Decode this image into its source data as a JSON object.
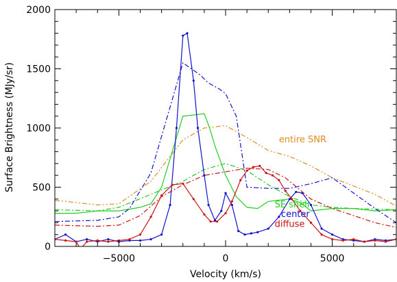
{
  "chart_data": {
    "type": "line",
    "title": "",
    "xlabel": "Velocity (km/s)",
    "ylabel": "Surface Brightness (MJy/sr)",
    "xlim": [
      -8000,
      8000
    ],
    "ylim": [
      0,
      2000
    ],
    "xticks": [
      -5000,
      0,
      5000
    ],
    "xtick_labels": [
      "−5000",
      "0",
      "5000"
    ],
    "yticks": [
      0,
      500,
      1000,
      1500,
      2000
    ],
    "ytick_labels": [
      "0",
      "500",
      "1000",
      "1500",
      "2000"
    ],
    "grid": false,
    "legend_location": "right-middle, inline labels",
    "series": [
      {
        "name": "entire SNR",
        "color": "#e08a1e",
        "dash": "dash-dot-dot",
        "x": [
          -8000,
          -6000,
          -5000,
          -3500,
          -2000,
          -1000,
          -500,
          0,
          1000,
          2000,
          3000,
          4000,
          5000,
          6000,
          7000,
          8000
        ],
        "y": [
          390,
          350,
          360,
          550,
          900,
          1000,
          1010,
          1020,
          920,
          810,
          760,
          680,
          580,
          510,
          440,
          340
        ]
      },
      {
        "name": "SE shell",
        "color": "#22cc22",
        "dash": "solid",
        "x": [
          -8000,
          -7000,
          -6000,
          -5000,
          -4000,
          -3500,
          -3000,
          -2500,
          -2000,
          -1500,
          -1000,
          -750,
          -500,
          0,
          500,
          1000,
          1500,
          2000,
          2500,
          3000,
          3500,
          4000,
          5000,
          6000,
          7000,
          8000
        ],
        "y": [
          280,
          280,
          300,
          300,
          330,
          360,
          500,
          800,
          1100,
          1110,
          1120,
          1000,
          850,
          600,
          420,
          330,
          320,
          380,
          390,
          400,
          370,
          300,
          320,
          320,
          300,
          310
        ]
      },
      {
        "name": "SE shell (dash-dot)",
        "color": "#22cc22",
        "dash": "dash-dot",
        "x": [
          -8000,
          -6000,
          -5000,
          -3500,
          -2000,
          -1000,
          0,
          1000,
          2000,
          3000,
          4000,
          5000,
          6000,
          8000
        ],
        "y": [
          310,
          300,
          330,
          440,
          550,
          650,
          700,
          640,
          520,
          420,
          350,
          330,
          320,
          310
        ]
      },
      {
        "name": "center",
        "color": "#1111cc",
        "dash": "solid",
        "x": [
          -8000,
          -7500,
          -7000,
          -6500,
          -6000,
          -5500,
          -5000,
          -4500,
          -4000,
          -3500,
          -3000,
          -2600,
          -2300,
          -2000,
          -1800,
          -1500,
          -1300,
          -1000,
          -800,
          -500,
          -200,
          0,
          300,
          600,
          900,
          1200,
          1500,
          2000,
          2500,
          3000,
          3300,
          3600,
          4000,
          4500,
          5000,
          5500,
          6000,
          6500,
          7000,
          7500,
          8000
        ],
        "y": [
          60,
          100,
          40,
          60,
          40,
          60,
          40,
          50,
          50,
          60,
          100,
          350,
          1000,
          1780,
          1800,
          1400,
          1000,
          600,
          350,
          220,
          300,
          450,
          350,
          130,
          100,
          110,
          120,
          150,
          250,
          400,
          460,
          450,
          350,
          150,
          100,
          60,
          50,
          40,
          60,
          50,
          60
        ]
      },
      {
        "name": "center (dash-dot)",
        "color": "#1111cc",
        "dash": "dash-dot",
        "x": [
          -8000,
          -6000,
          -5000,
          -4500,
          -3500,
          -2000,
          -1200,
          -800,
          -300,
          0,
          500,
          1000,
          2000,
          3000,
          4000,
          5000,
          6000,
          7000,
          8000
        ],
        "y": [
          210,
          220,
          250,
          320,
          620,
          1550,
          1450,
          1380,
          1330,
          1290,
          1100,
          500,
          490,
          490,
          530,
          580,
          450,
          320,
          200
        ]
      },
      {
        "name": "diffuse",
        "color": "#cc1111",
        "dash": "solid",
        "x": [
          -8000,
          -7500,
          -7000,
          -6800,
          -6500,
          -6000,
          -5500,
          -5000,
          -4500,
          -4000,
          -3500,
          -3000,
          -2500,
          -2000,
          -1500,
          -1000,
          -700,
          -400,
          0,
          300,
          700,
          1000,
          1300,
          1600,
          1900,
          2200,
          2500,
          2800,
          3100,
          3500,
          4000,
          4500,
          5000,
          5500,
          6000,
          6500,
          7000,
          7500,
          8000
        ],
        "y": [
          60,
          50,
          40,
          -20,
          40,
          50,
          40,
          50,
          60,
          100,
          250,
          430,
          520,
          530,
          400,
          270,
          210,
          210,
          280,
          380,
          560,
          640,
          670,
          680,
          620,
          600,
          560,
          470,
          400,
          300,
          200,
          100,
          60,
          50,
          60,
          40,
          50,
          40,
          60
        ]
      },
      {
        "name": "diffuse (dash-dot)",
        "color": "#cc1111",
        "dash": "dash-dot",
        "x": [
          -8000,
          -6000,
          -5000,
          -4000,
          -3000,
          -2000,
          -1000,
          0,
          1000,
          2000,
          2800,
          3200,
          4000,
          5000,
          6000,
          7000,
          8000
        ],
        "y": [
          180,
          170,
          180,
          260,
          420,
          520,
          600,
          630,
          660,
          650,
          580,
          520,
          400,
          320,
          260,
          200,
          160
        ]
      }
    ],
    "annotations": [
      {
        "text": "entire SNR",
        "color": "#e08a1e",
        "x": 2500,
        "y": 880
      },
      {
        "text": "SE shell",
        "color": "#22cc22",
        "x": 2300,
        "y": 330
      },
      {
        "text": "center",
        "color": "#1111cc",
        "x": 2600,
        "y": 250
      },
      {
        "text": "diffuse",
        "color": "#cc1111",
        "x": 2300,
        "y": 165
      }
    ]
  }
}
